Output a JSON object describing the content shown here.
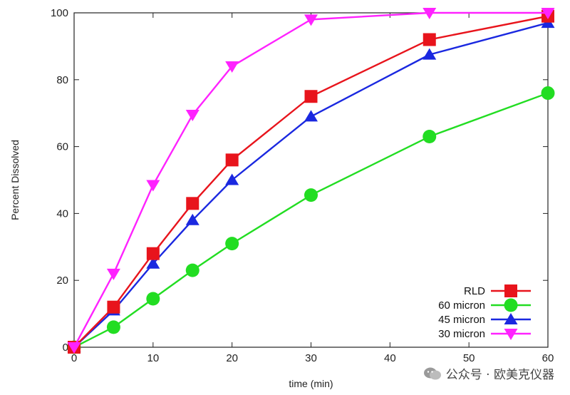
{
  "chart_data": {
    "type": "line",
    "title": "",
    "xlabel": "time (min)",
    "ylabel": "Percent Dissolved",
    "xlim": [
      0,
      60
    ],
    "ylim": [
      0,
      100
    ],
    "xticks": [
      0,
      10,
      20,
      30,
      40,
      50,
      60
    ],
    "yticks": [
      0,
      20,
      40,
      60,
      80,
      100
    ],
    "grid": false,
    "legend_position": "bottom-right",
    "series": [
      {
        "name": "RLD",
        "color": "#e8141c",
        "marker": "square",
        "x": [
          0,
          5,
          10,
          15,
          20,
          30,
          45,
          60
        ],
        "y": [
          0,
          12,
          28,
          43,
          56,
          75,
          92,
          99
        ]
      },
      {
        "name": "60 micron",
        "color": "#22dd22",
        "marker": "circle",
        "x": [
          0,
          5,
          10,
          15,
          20,
          30,
          45,
          60
        ],
        "y": [
          0,
          6,
          14.5,
          23,
          31,
          45.5,
          63,
          76
        ]
      },
      {
        "name": "45 micron",
        "color": "#1a28e0",
        "marker": "triangle-up",
        "x": [
          0,
          5,
          10,
          15,
          20,
          30,
          45,
          60
        ],
        "y": [
          0,
          11,
          25,
          38,
          50,
          69,
          87.5,
          97
        ]
      },
      {
        "name": "30 micron",
        "color": "#ff22ff",
        "marker": "triangle-down",
        "x": [
          0,
          5,
          10,
          15,
          20,
          30,
          45,
          60
        ],
        "y": [
          0,
          22,
          48.5,
          69.5,
          84,
          98,
          100,
          100
        ]
      }
    ]
  },
  "watermark": {
    "text": "公众号 · 欧美克仪器"
  }
}
